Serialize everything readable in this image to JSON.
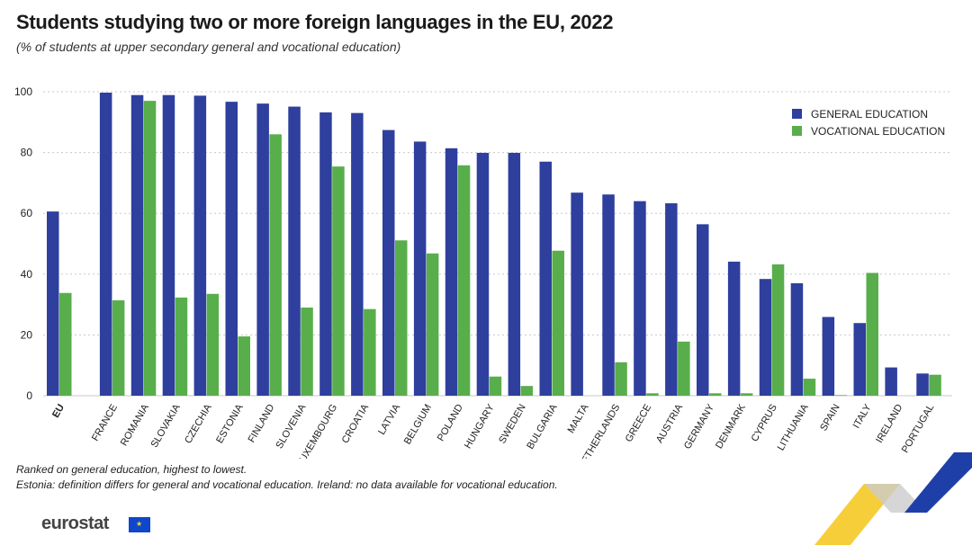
{
  "header": {
    "title": "Students studying two or more foreign languages in the EU, 2022",
    "subtitle": "(% of students at upper secondary general and vocational education)"
  },
  "notes": [
    "Ranked on general education, highest to lowest.",
    "Estonia: definition differs for general and vocational education. Ireland: no data available for vocational education."
  ],
  "footer": {
    "logo_text": "eurostat"
  },
  "colors": {
    "general": "#2e3f9e",
    "vocational": "#58ae4b",
    "grid": "#c8c8c8"
  },
  "chart_data": {
    "type": "bar",
    "title": "Students studying two or more foreign languages in the EU, 2022",
    "subtitle": "(% of students at upper secondary general and vocational education)",
    "categories": [
      "EU",
      "France",
      "Romania",
      "Slovakia",
      "Czechia",
      "Estonia",
      "Finland",
      "Slovenia",
      "Luxembourg",
      "Croatia",
      "Latvia",
      "Belgium",
      "Poland",
      "Hungary",
      "Sweden",
      "Bulgaria",
      "Malta",
      "Netherlands",
      "Greece",
      "Austria",
      "Germany",
      "Denmark",
      "Cyprus",
      "Lithuania",
      "Spain",
      "Italy",
      "Ireland",
      "Portugal"
    ],
    "tick_labels": [
      "EU",
      "FRANCE",
      "ROMANIA",
      "SLOVAKIA",
      "CZECHIA",
      "ESTONIA",
      "FINLAND",
      "SLOVENIA",
      "LUXEMBOURG",
      "CROATIA",
      "LATVIA",
      "BELGIUM",
      "POLAND",
      "HUNGARY",
      "SWEDEN",
      "BULGARIA",
      "MALTA",
      "NETHERLANDS",
      "GREECE",
      "AUSTRIA",
      "GERMANY",
      "DENMARK",
      "CYPRUS",
      "LITHUANIA",
      "SPAIN",
      "ITALY",
      "IRELAND",
      "PORTUGAL"
    ],
    "series": [
      {
        "name": "GENERAL EDUCATION",
        "values": [
          60.6,
          99.7,
          98.9,
          98.9,
          98.7,
          96.7,
          96.1,
          95.1,
          93.2,
          93.0,
          87.4,
          83.6,
          81.4,
          79.9,
          79.9,
          77.0,
          66.8,
          66.2,
          64.0,
          63.3,
          56.4,
          44.1,
          38.4,
          37.0,
          25.9,
          23.9,
          9.3,
          7.3
        ]
      },
      {
        "name": "VOCATIONAL EDUCATION",
        "values": [
          33.8,
          31.4,
          97.0,
          32.3,
          33.5,
          19.5,
          86.0,
          29.0,
          75.4,
          28.5,
          51.1,
          46.8,
          75.8,
          6.3,
          3.2,
          47.7,
          null,
          11.0,
          0.8,
          17.8,
          0.8,
          0.8,
          43.2,
          5.6,
          0.2,
          40.4,
          null,
          6.9
        ]
      }
    ],
    "ylim": [
      0,
      100
    ],
    "yticks": [
      0,
      20,
      40,
      60,
      80,
      100
    ],
    "xlabel": "",
    "ylabel": "",
    "grid": true,
    "legend_position": "top-right"
  }
}
